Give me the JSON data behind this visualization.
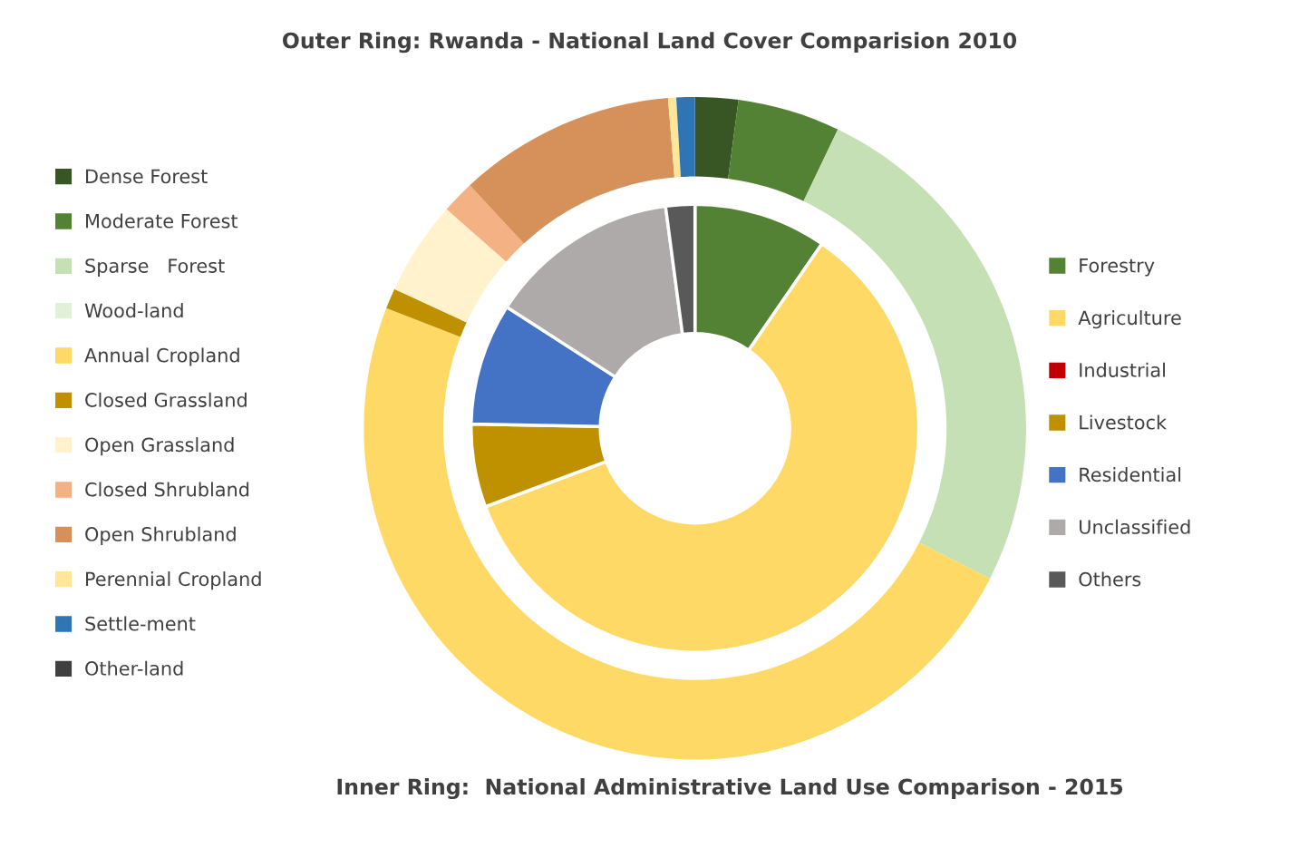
{
  "chart_data": {
    "type": "donut",
    "title": "Outer Ring: Rwanda - National Land Cover Comparision 2010",
    "annotations": [
      "Inner Ring:  National Administrative Land Use Comparison - 2015"
    ],
    "legend": "left",
    "categories": [
      "Dense Forest",
      "Moderate Forest",
      "Sparse   Forest",
      "Wood-land",
      "Annual Cropland",
      "Closed Grassland",
      "Open Grassland",
      "Closed Shrubland",
      "Open Shrubland",
      "Perennial Cropland",
      "Settle-ment",
      "Other-land",
      "Forestry",
      "Agriculture",
      "Industrial",
      "Livestock",
      "Residential",
      "Unclassified",
      "Others"
    ],
    "colors": [
      "#375623",
      "#548235",
      "#c5e0b4",
      "#e2f0d9",
      "#ffd966",
      "#bf9000",
      "#fff2cc",
      "#f4b183",
      "#d6905a",
      "#ffe699",
      "#2e75b6",
      "#404040",
      "#548235",
      "#ffd966",
      "#c00000",
      "#bf9000",
      "#4472c4",
      "#aeaaaa",
      "#595959"
    ],
    "series": [
      {
        "values": [
          2.1,
          5.0,
          25.4,
          0,
          48.4,
          1.0,
          4.6,
          1.6,
          10.6,
          0.4,
          0.9,
          0,
          null,
          null,
          null,
          null,
          null,
          null,
          null
        ]
      },
      {
        "values": [
          null,
          null,
          null,
          null,
          null,
          null,
          null,
          null,
          null,
          null,
          null,
          null,
          9.6,
          59.7,
          0,
          6.0,
          8.8,
          13.8,
          2.1
        ]
      }
    ]
  }
}
